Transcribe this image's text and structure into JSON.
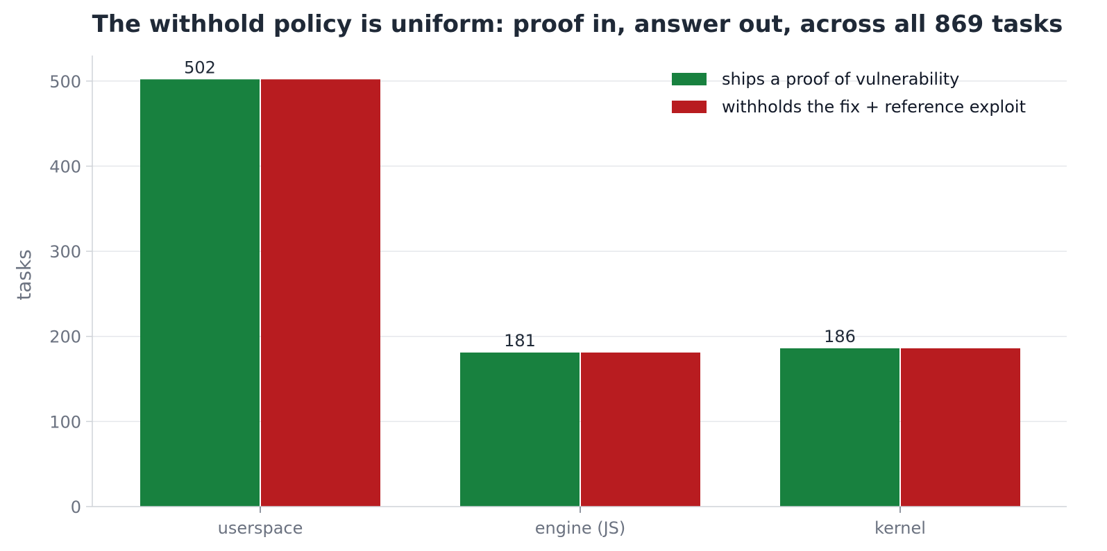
{
  "chart_data": {
    "type": "bar",
    "title": "The withhold policy is uniform: proof in, answer out, across all 869 tasks",
    "xlabel": "",
    "ylabel": "tasks",
    "categories": [
      "userspace",
      "engine (JS)",
      "kernel"
    ],
    "series": [
      {
        "name": "ships a proof of vulnerability",
        "values": [
          502,
          181,
          186
        ],
        "color": "#18813f"
      },
      {
        "name": "withholds the fix + reference exploit",
        "values": [
          502,
          181,
          186
        ],
        "color": "#b81c20"
      }
    ],
    "data_labels": [
      "502",
      "181",
      "186"
    ],
    "yticks": [
      0,
      100,
      200,
      300,
      400,
      500
    ],
    "ylim": [
      0,
      530
    ],
    "grid": true,
    "legend_position": "top-right",
    "colors": {
      "grid": "#e5e7eb",
      "axis": "#cfd3d8",
      "text": "#1f2937",
      "tick_text": "#6b7280"
    }
  }
}
